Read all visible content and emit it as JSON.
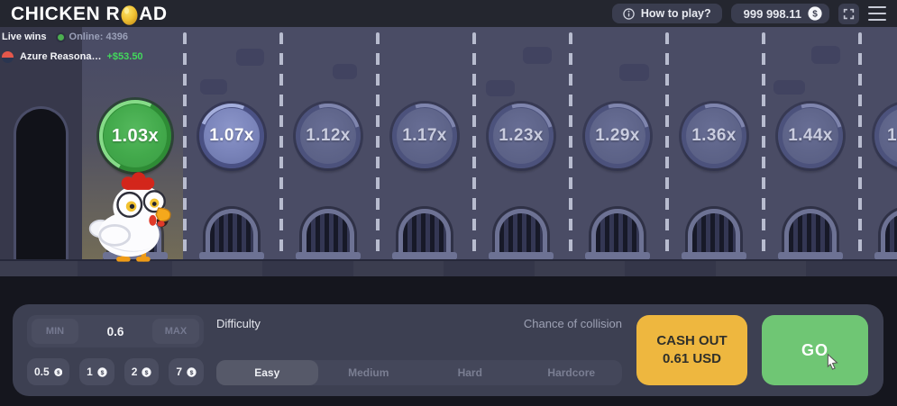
{
  "header": {
    "logo_part1": "CHICKEN R",
    "logo_part2": "AD",
    "how_to_play": "How to play?",
    "balance": "999 998.11"
  },
  "live": {
    "label": "Live wins",
    "online_label": "Online:",
    "online_count": "4396",
    "player_name": "Azure Reasona…",
    "player_win": "+$53.50"
  },
  "tiles": [
    {
      "label": "1.03x",
      "state": "active"
    },
    {
      "label": "1.07x",
      "state": "next"
    },
    {
      "label": "1.12x",
      "state": "future"
    },
    {
      "label": "1.17x",
      "state": "future"
    },
    {
      "label": "1.23x",
      "state": "future"
    },
    {
      "label": "1.29x",
      "state": "future"
    },
    {
      "label": "1.36x",
      "state": "future"
    },
    {
      "label": "1.44x",
      "state": "future"
    },
    {
      "label": "1.",
      "state": "future",
      "partial": true
    }
  ],
  "controls": {
    "min_label": "MIN",
    "max_label": "MAX",
    "bet_value": "0.6",
    "chips": [
      "0.5",
      "1",
      "2",
      "7"
    ],
    "difficulty_label": "Difficulty",
    "difficulties": [
      "Easy",
      "Medium",
      "Hard",
      "Hardcore"
    ],
    "selected_difficulty": "Easy",
    "chance_label": "Chance of collision",
    "cashout_line1": "CASH OUT",
    "cashout_line2": "0.61 USD",
    "go_label": "GO"
  },
  "icons": {
    "info": "ⓘ",
    "coin": "$",
    "fullscreen": "expand-corners",
    "menu": "hamburger",
    "online_dot": "●"
  },
  "colors": {
    "header_bg": "#24262f",
    "road": "#4a4c65",
    "sidewalk": "#37384b",
    "panel_bg": "#3d4052",
    "tile_active": "#42a94b",
    "tile_next": "#7b85bb",
    "tile_future": "#5e6489",
    "cashout_yellow": "#eeb73f",
    "go_green": "#6fc674",
    "win_green": "#42d95c",
    "dash": "#ccd0e2"
  }
}
